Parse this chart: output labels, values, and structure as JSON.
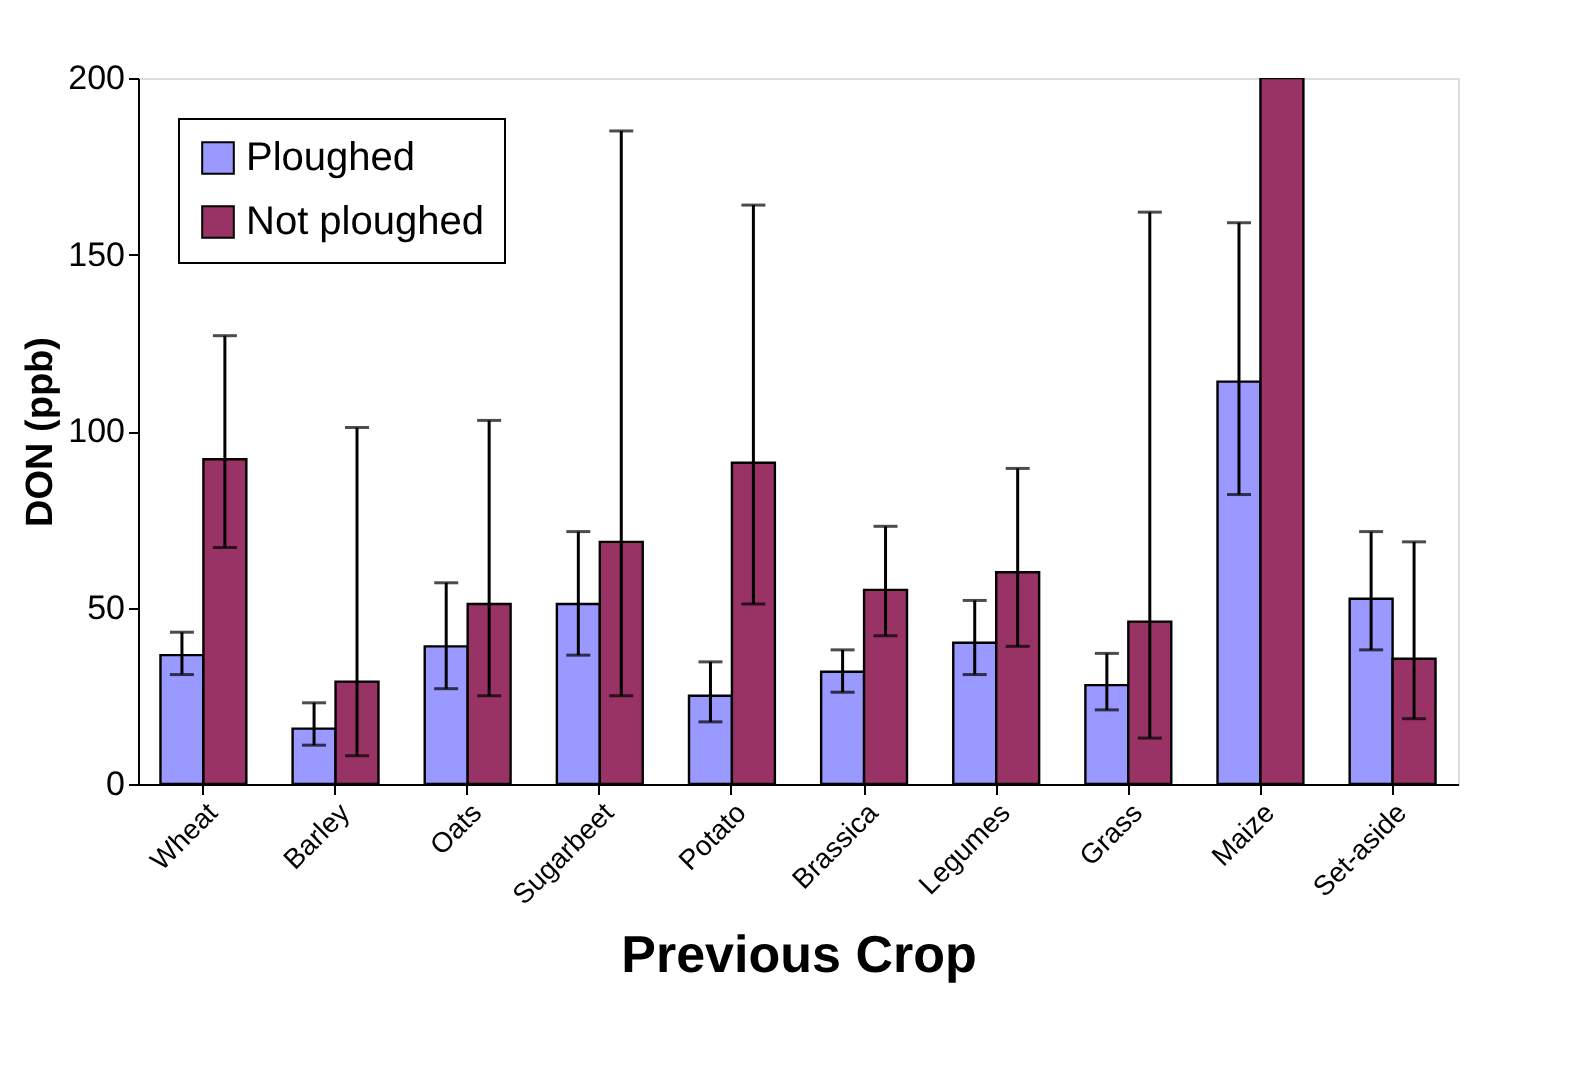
{
  "chart_data": {
    "type": "bar",
    "xlabel": "Previous Crop",
    "ylabel": "DON (ppb)",
    "categories": [
      "Wheat",
      "Barley",
      "Oats",
      "Sugarbeet",
      "Potato",
      "Brassica",
      "Legumes",
      "Grass",
      "Maize",
      "Set-aside"
    ],
    "series": [
      {
        "name": "Ploughed",
        "color": "#9999ff",
        "values": [
          36.5,
          15.7,
          39,
          51,
          25,
          31.8,
          40,
          28,
          114,
          52.5
        ],
        "errors": [
          [
            31,
            43
          ],
          [
            11,
            23
          ],
          [
            27,
            57
          ],
          [
            36.5,
            71.5
          ],
          [
            17.6,
            34.6
          ],
          [
            26,
            38
          ],
          [
            31,
            52
          ],
          [
            21,
            37
          ],
          [
            82,
            159
          ],
          [
            38,
            71.5
          ]
        ]
      },
      {
        "name": "Not ploughed",
        "color": "#993366",
        "values": [
          92,
          29,
          51,
          68.6,
          91,
          55,
          60,
          46,
          200,
          35.5
        ],
        "errors": [
          [
            67,
            127
          ],
          [
            8,
            101
          ],
          [
            25,
            103
          ],
          [
            25,
            185
          ],
          [
            51,
            164
          ],
          [
            42,
            73
          ],
          [
            39,
            89.4
          ],
          [
            13,
            162
          ],
          null,
          [
            18.5,
            68.6
          ]
        ]
      }
    ],
    "ylim": [
      0,
      200
    ],
    "yticks": [
      0,
      50,
      100,
      150,
      200
    ],
    "grid": false,
    "legend": "top left"
  }
}
